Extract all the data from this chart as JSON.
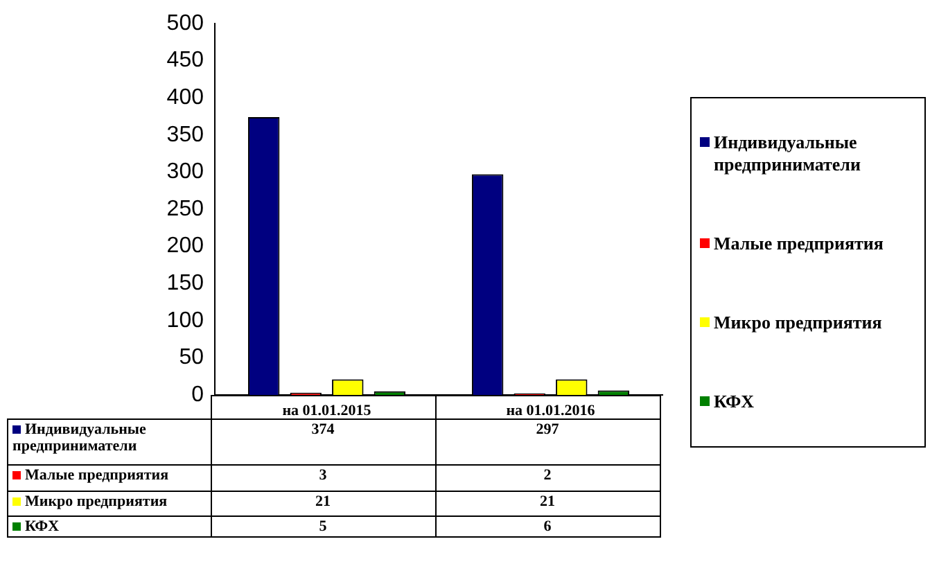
{
  "chart_data": {
    "type": "bar",
    "categories": [
      "на 01.01.2015",
      "на 01.01.2016"
    ],
    "series": [
      {
        "name": "Индивидуальные предприниматели",
        "color": "#000080",
        "values": [
          374,
          297
        ]
      },
      {
        "name": "Малые предприятия",
        "color": "#ff0000",
        "values": [
          3,
          2
        ]
      },
      {
        "name": "Микро предприятия",
        "color": "#ffff00",
        "values": [
          21,
          21
        ]
      },
      {
        "name": "КФХ",
        "color": "#008000",
        "values": [
          5,
          6
        ]
      }
    ],
    "ylim": [
      0,
      500
    ],
    "yticks": [
      0,
      50,
      100,
      150,
      200,
      250,
      300,
      350,
      400,
      450,
      500
    ],
    "grid": false,
    "legend": "right",
    "data_labels": true
  }
}
